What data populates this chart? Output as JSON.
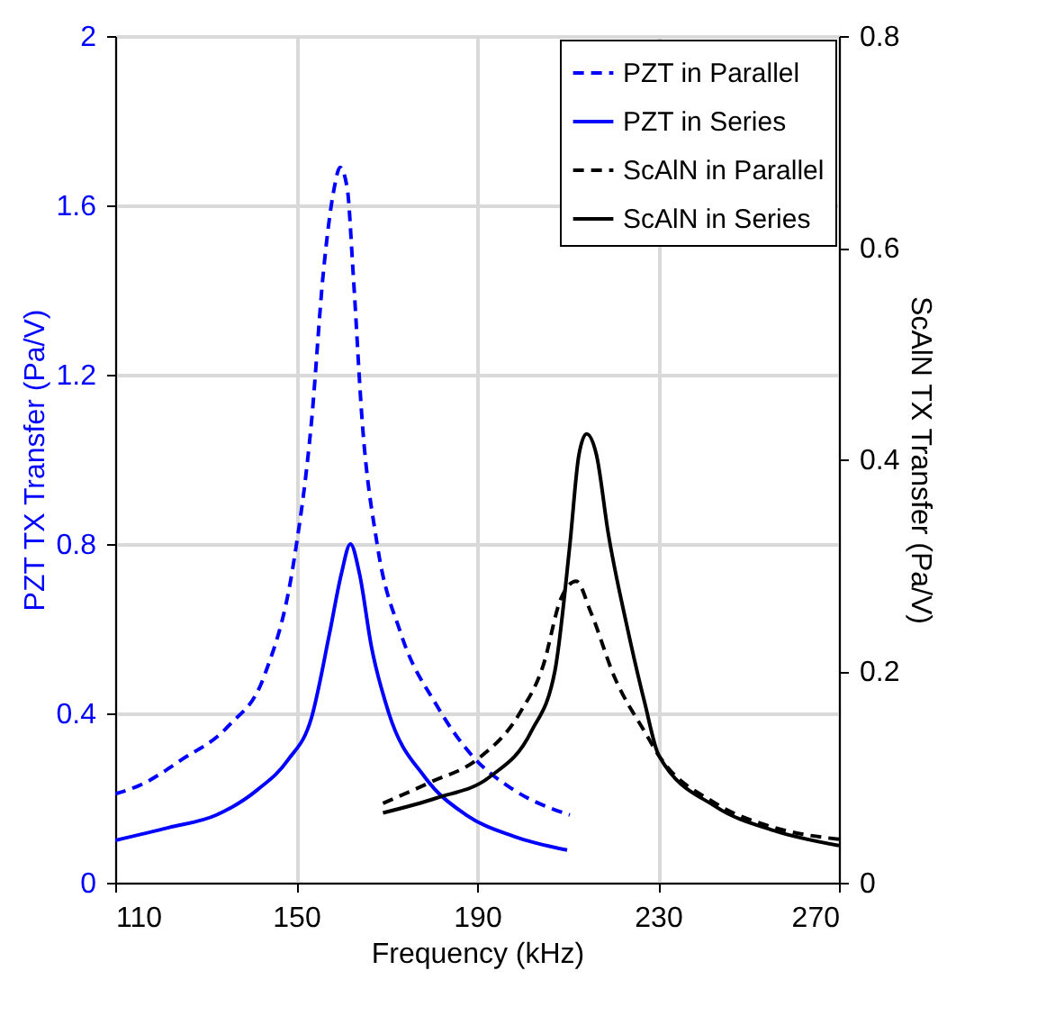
{
  "chart_data": {
    "type": "line",
    "xlabel": "Frequency (kHz)",
    "ylabel": "PZT TX Transfer (Pa/V)",
    "y2label": "ScAlN TX Transfer (Pa/V)",
    "xlim": [
      110,
      270
    ],
    "xticks": [
      110,
      150,
      190,
      230,
      270
    ],
    "ylim": [
      0,
      2
    ],
    "yticks": [
      0,
      0.4,
      0.8,
      1.2,
      1.6,
      2
    ],
    "y2lim": [
      0,
      0.8
    ],
    "y2ticks": [
      0,
      0.2,
      0.4,
      0.6,
      0.8
    ],
    "grid": true,
    "legend": "top right",
    "series": [
      {
        "name": "PZT in Parallel",
        "color": "#0000ff",
        "line_style": "dashed",
        "x": [
          110,
          115.4,
          124.6,
          135,
          143,
          149.5,
          153.4,
          156,
          158.4,
          159.7,
          161.3,
          162.6,
          164.6,
          167.9,
          173.1,
          181,
          188.9,
          198,
          210.5
        ],
        "values": [
          0.21,
          0.23,
          0.29,
          0.37,
          0.49,
          0.76,
          1.09,
          1.44,
          1.64,
          1.69,
          1.64,
          1.44,
          1.09,
          0.8,
          0.59,
          0.42,
          0.3,
          0.22,
          0.16
        ]
      },
      {
        "name": "PZT in Series",
        "color": "#0000ff",
        "line_style": "solid",
        "x": [
          110,
          121.8,
          132.4,
          141.5,
          148.2,
          153.4,
          157.4,
          160,
          162,
          164,
          166.6,
          170.5,
          178.4,
          187.6,
          198,
          209.9
        ],
        "values": [
          0.1,
          0.13,
          0.16,
          0.22,
          0.29,
          0.39,
          0.59,
          0.73,
          0.8,
          0.73,
          0.56,
          0.4,
          0.25,
          0.16,
          0.11,
          0.077
        ]
      },
      {
        "name": "ScAlN in Parallel",
        "color": "#000000",
        "line_style": "dashed",
        "axis": "y2",
        "x": [
          169.2,
          179.7,
          190.2,
          199.4,
          204.6,
          208.5,
          211.9,
          215.1,
          220.4,
          227,
          230.2,
          242.7,
          255.8,
          270
        ],
        "values": [
          0.075,
          0.095,
          0.117,
          0.16,
          0.205,
          0.268,
          0.285,
          0.256,
          0.194,
          0.143,
          0.12,
          0.075,
          0.052,
          0.041
        ]
      },
      {
        "name": "ScAlN in Series",
        "color": "#000000",
        "line_style": "solid",
        "axis": "y2",
        "x": [
          169.2,
          181,
          192.8,
          202,
          207.2,
          210.5,
          212.5,
          214.2,
          216.4,
          219,
          223,
          227,
          230.2,
          242.7,
          255.8,
          270
        ],
        "values": [
          0.066,
          0.08,
          0.1,
          0.143,
          0.2,
          0.319,
          0.404,
          0.424,
          0.404,
          0.33,
          0.245,
          0.171,
          0.12,
          0.072,
          0.049,
          0.035
        ]
      }
    ]
  }
}
